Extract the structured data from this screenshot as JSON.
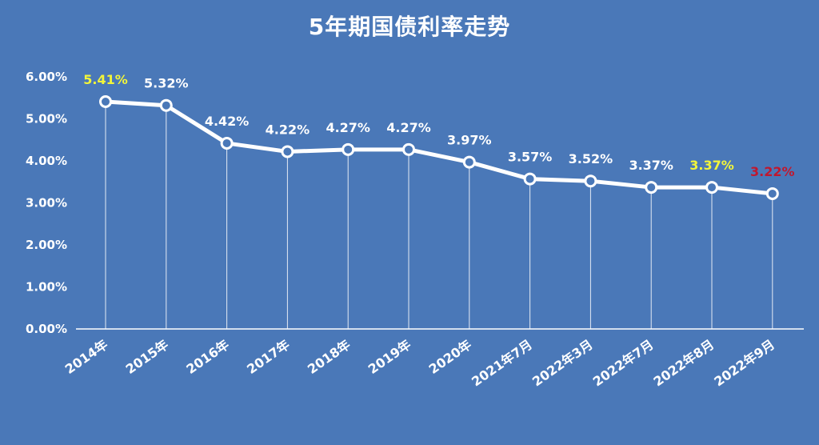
{
  "chart_data": {
    "type": "line",
    "title": "5年期国债利率走势",
    "categories": [
      "2014年",
      "2015年",
      "2016年",
      "2017年",
      "2018年",
      "2019年",
      "2020年",
      "2021年7月",
      "2022年3月",
      "2022年7月",
      "2022年8月",
      "2022年9月"
    ],
    "series": [
      {
        "values": [
          5.41,
          5.32,
          4.42,
          4.22,
          4.27,
          4.27,
          3.97,
          3.57,
          3.52,
          3.37,
          3.37,
          3.22
        ],
        "data_labels": [
          "5.41%",
          "5.32%",
          "4.42%",
          "4.22%",
          "4.27%",
          "4.27%",
          "3.97%",
          "3.57%",
          "3.52%",
          "3.37%",
          "3.37%",
          "3.22%"
        ],
        "label_colors": [
          "#f2f53a",
          "#ffffff",
          "#ffffff",
          "#ffffff",
          "#ffffff",
          "#ffffff",
          "#ffffff",
          "#ffffff",
          "#ffffff",
          "#ffffff",
          "#f2f53a",
          "#c0182f"
        ]
      }
    ],
    "yticks": [
      "0.00%",
      "1.00%",
      "2.00%",
      "3.00%",
      "4.00%",
      "5.00%",
      "6.00%"
    ],
    "ylim": [
      0,
      6
    ],
    "grid": false,
    "line_color": "#ffffff",
    "background_color": "#4a78b8"
  }
}
